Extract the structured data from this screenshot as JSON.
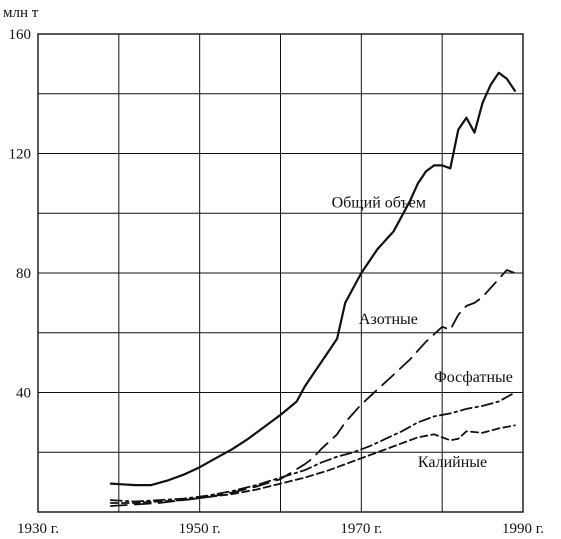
{
  "chart_data": {
    "type": "line",
    "title": "",
    "xlabel": "",
    "ylabel": "млн т",
    "xlim": [
      1930,
      1990
    ],
    "ylim": [
      0,
      160
    ],
    "x_ticks": [
      {
        "value": 1930,
        "label": "1930 г."
      },
      {
        "value": 1950,
        "label": "1950 г."
      },
      {
        "value": 1970,
        "label": "1970 г."
      },
      {
        "value": 1990,
        "label": "1990 г."
      }
    ],
    "y_ticks": [
      {
        "value": 40,
        "label": "40"
      },
      {
        "value": 80,
        "label": "80"
      },
      {
        "value": 120,
        "label": "120"
      },
      {
        "value": 160,
        "label": "160"
      }
    ],
    "grid": true,
    "series": [
      {
        "name": "Общий объем",
        "style": "solid",
        "x": [
          1939,
          1942,
          1944,
          1946,
          1948,
          1950,
          1952,
          1954,
          1956,
          1958,
          1960,
          1962,
          1963,
          1964,
          1966,
          1967,
          1968,
          1970,
          1972,
          1974,
          1976,
          1977,
          1978,
          1979,
          1980,
          1981,
          1982,
          1983,
          1984,
          1985,
          1986,
          1987,
          1988,
          1989
        ],
        "values": [
          9.5,
          9,
          9,
          10.5,
          12.5,
          15,
          18,
          21,
          24.5,
          28.5,
          32.5,
          37,
          42,
          46,
          54,
          58,
          70,
          80,
          88,
          94,
          104,
          110,
          114,
          116,
          116,
          115,
          128,
          132,
          127,
          137,
          143,
          147,
          145,
          141
        ]
      },
      {
        "name": "Азотные",
        "style": "dashed",
        "x": [
          1939,
          1942,
          1945,
          1948,
          1951,
          1954,
          1957,
          1960,
          1963,
          1964,
          1965,
          1967,
          1968,
          1970,
          1972,
          1974,
          1976,
          1978,
          1980,
          1981,
          1982,
          1983,
          1984,
          1985,
          1986,
          1987,
          1988,
          1989
        ],
        "values": [
          2,
          2.5,
          3,
          4,
          5,
          6.5,
          8.5,
          11,
          16,
          18,
          21,
          26,
          30,
          36,
          41,
          46,
          51,
          57,
          62,
          61,
          66,
          69,
          70,
          72,
          75,
          78,
          81,
          80
        ]
      },
      {
        "name": "Фосфатные",
        "style": "dashdot",
        "x": [
          1939,
          1942,
          1945,
          1948,
          1951,
          1954,
          1957,
          1960,
          1963,
          1965,
          1967,
          1969,
          1971,
          1973,
          1975,
          1977,
          1979,
          1981,
          1983,
          1985,
          1987,
          1989
        ],
        "values": [
          4,
          3.5,
          4,
          4.5,
          5.5,
          7,
          9,
          11.5,
          14,
          16.5,
          18.5,
          20,
          22,
          24.5,
          27,
          30,
          32,
          33,
          34.5,
          35.5,
          37,
          40
        ]
      },
      {
        "name": "Калийные",
        "style": "short-dashed",
        "x": [
          1939,
          1942,
          1945,
          1948,
          1951,
          1954,
          1957,
          1960,
          1963,
          1966,
          1969,
          1972,
          1975,
          1977,
          1979,
          1981,
          1982,
          1983,
          1985,
          1987,
          1989
        ],
        "values": [
          3,
          3,
          3.5,
          4,
          5,
          6,
          7.5,
          9.5,
          11.5,
          14,
          17,
          20,
          23,
          25,
          26,
          24,
          24.5,
          27,
          26.5,
          28,
          29
        ]
      }
    ]
  }
}
